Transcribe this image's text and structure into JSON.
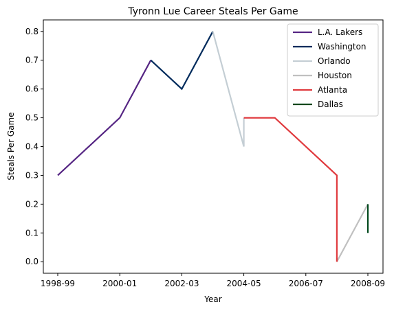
{
  "chart_data": {
    "type": "line",
    "title": "Tyronn Lue Career Steals Per Game",
    "xlabel": "Year",
    "ylabel": "Steals Per Game",
    "categories": [
      "1998-99",
      "1999-00",
      "2000-01",
      "2001-02",
      "2002-03",
      "2003-04",
      "2004-05",
      "2005-06",
      "2006-07",
      "2007-08",
      "2008-09"
    ],
    "x_tick_labels": [
      "1998-99",
      "2000-01",
      "2002-03",
      "2004-05",
      "2006-07",
      "2008-09"
    ],
    "y_ticks": [
      "0.0",
      "0.1",
      "0.2",
      "0.3",
      "0.4",
      "0.5",
      "0.6",
      "0.7",
      "0.8"
    ],
    "ylim": [
      -0.04,
      0.84
    ],
    "legend_position": "top-right",
    "grid": false,
    "series": [
      {
        "name": "L.A. Lakers",
        "color": "#552583",
        "points": [
          [
            "1998-99",
            0.3
          ],
          [
            "2000-01",
            0.5
          ],
          [
            "2001-02",
            0.7
          ]
        ]
      },
      {
        "name": "Washington",
        "color": "#002B5C",
        "points": [
          [
            "2001-02",
            0.7
          ],
          [
            "2002-03",
            0.6
          ],
          [
            "2003-04",
            0.8
          ]
        ]
      },
      {
        "name": "Orlando",
        "color": "#C4CED4",
        "points": [
          [
            "2003-04",
            0.8
          ],
          [
            "2004-05",
            0.4
          ],
          [
            "2004-05",
            0.5
          ]
        ]
      },
      {
        "name": "Houston",
        "color": "#C0C0C0",
        "points": [
          [
            "2007-08",
            0.0
          ],
          [
            "2008-09",
            0.2
          ]
        ]
      },
      {
        "name": "Atlanta",
        "color": "#E03A3E",
        "points": [
          [
            "2004-05",
            0.5
          ],
          [
            "2005-06",
            0.5
          ],
          [
            "2007-08",
            0.3
          ],
          [
            "2007-08",
            0.0
          ]
        ]
      },
      {
        "name": "Dallas",
        "color": "#00471B",
        "points": [
          [
            "2008-09",
            0.2
          ],
          [
            "2008-09",
            0.1
          ]
        ]
      }
    ]
  }
}
